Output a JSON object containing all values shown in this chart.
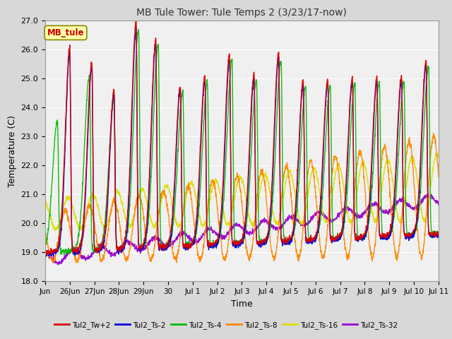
{
  "title": "MB Tule Tower: Tule Temps 2 (3/23/17-now)",
  "xlabel": "Time",
  "ylabel": "Temperature (C)",
  "ylim": [
    18.0,
    27.0
  ],
  "yticks": [
    18.0,
    19.0,
    20.0,
    21.0,
    22.0,
    23.0,
    24.0,
    25.0,
    26.0,
    27.0
  ],
  "xtick_labels": [
    "Jun",
    "26Jun",
    "27Jun",
    "28Jun",
    "29Jun",
    "30",
    "Jul 1",
    "Jul 2",
    "Jul 3",
    "Jul 4",
    "Jul 5",
    "Jul 6",
    "Jul 7",
    "Jul 8",
    "Jul 9",
    "Jul 10",
    "Jul 11"
  ],
  "legend_label": "MB_tule",
  "series_labels": [
    "Tul2_Tw+2",
    "Tul2_Ts-2",
    "Tul2_Ts-4",
    "Tul2_Ts-8",
    "Tul2_Ts-16",
    "Tul2_Ts-32"
  ],
  "series_colors": [
    "#dd0000",
    "#0000dd",
    "#00bb00",
    "#ff8800",
    "#dddd00",
    "#9900cc"
  ],
  "background_color": "#d8d8d8",
  "plot_bg_color": "#f0f0f0",
  "grid_color": "#ffffff",
  "n_days": 16
}
